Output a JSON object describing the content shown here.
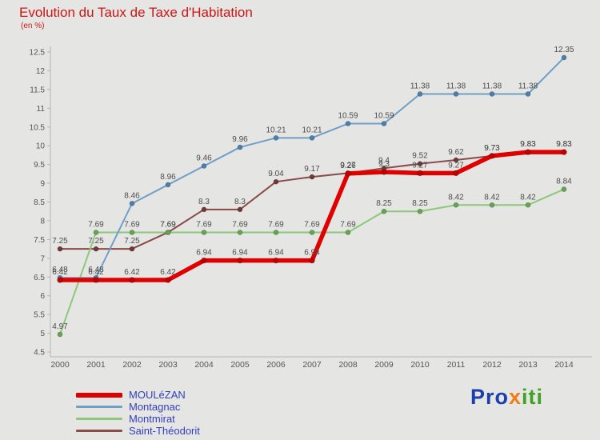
{
  "title": "Evolution du Taux de Taxe d'Habitation",
  "subtitle": "(en %)",
  "logo": {
    "pro": "Pro",
    "x": "x",
    "iti": "iti",
    "pro_color": "#1c3fae",
    "x_color": "#f07d1a",
    "iti_color": "#3ea325"
  },
  "chart_data": {
    "type": "line",
    "x": [
      2000,
      2001,
      2002,
      2003,
      2004,
      2005,
      2006,
      2007,
      2008,
      2009,
      2010,
      2011,
      2012,
      2013,
      2014
    ],
    "series": [
      {
        "name": "MOULéZAN",
        "color": "#e00000",
        "marker": "#c00000",
        "width": 5.5,
        "values": [
          6.42,
          6.42,
          6.42,
          6.42,
          6.94,
          6.94,
          6.94,
          6.94,
          9.26,
          9.3,
          9.27,
          9.27,
          9.73,
          9.83,
          9.83
        ]
      },
      {
        "name": "Montagnac",
        "color": "#6f9fc8",
        "marker": "#4a7fae",
        "width": 2,
        "values": [
          6.48,
          6.48,
          8.46,
          8.96,
          9.46,
          9.96,
          10.21,
          10.21,
          10.59,
          10.59,
          11.38,
          11.38,
          11.38,
          11.38,
          12.35
        ]
      },
      {
        "name": "Montmirat",
        "color": "#8cc87a",
        "marker": "#63a551",
        "width": 2,
        "values": [
          4.97,
          7.69,
          7.69,
          7.69,
          7.69,
          7.69,
          7.69,
          7.69,
          7.69,
          8.25,
          8.25,
          8.42,
          8.42,
          8.42,
          8.84
        ]
      },
      {
        "name": "Saint-Théodorit",
        "color": "#8a4a48",
        "marker": "#6f3836",
        "width": 2,
        "values": [
          7.25,
          7.25,
          7.25,
          7.69,
          8.3,
          8.3,
          9.04,
          9.17,
          9.27,
          9.4,
          9.52,
          9.62,
          9.73,
          9.83,
          9.83
        ]
      }
    ],
    "ylim": [
      4.5,
      12.5
    ],
    "ytick_step": 0.5,
    "xlabel": "",
    "ylabel": "",
    "grid": false,
    "legend_position": "bottom-left",
    "legend_text_color": "#3340bb",
    "axis_color": "#b5b5b5",
    "tick_label_color": "#555555",
    "point_label_color": "#4d4d4d"
  }
}
